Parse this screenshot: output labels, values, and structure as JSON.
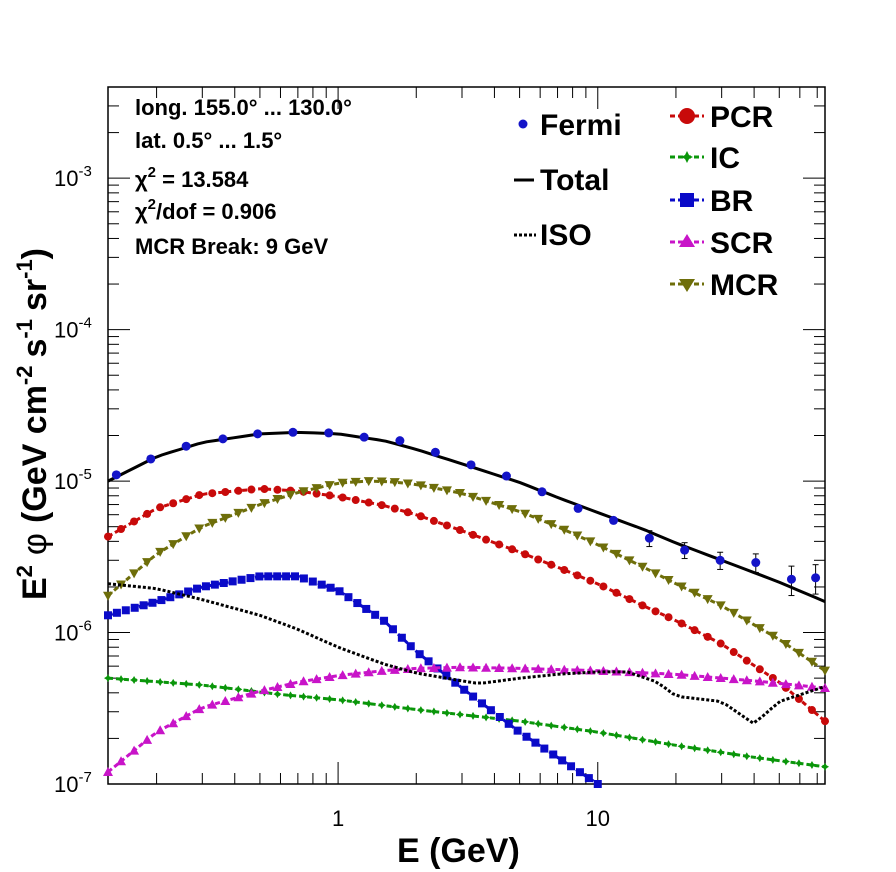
{
  "chart_data": {
    "type": "line",
    "xlabel": "E (GeV)",
    "ylabel": "E2 φ (GeV cm-2 s-1 sr-1)",
    "ylabel_parts": {
      "e": "E",
      "e_sup": "2",
      "phi": "φ",
      "open": "(GeV cm",
      "cm_sup": "-2",
      "s": "s",
      "s_sup": "-1",
      "sr": "sr",
      "sr_sup": "-1",
      "close": ")"
    },
    "xscale": "log",
    "yscale": "log",
    "xlim": [
      0.13,
      75
    ],
    "ylim": [
      1e-07,
      0.004
    ],
    "x_tick_labels": [
      {
        "value": 1,
        "label": "1"
      },
      {
        "value": 10,
        "label": "10"
      }
    ],
    "y_tick_labels": [
      {
        "value": 1e-07,
        "mant": "10",
        "exp": "-7"
      },
      {
        "value": 1e-06,
        "mant": "10",
        "exp": "-6"
      },
      {
        "value": 1e-05,
        "mant": "10",
        "exp": "-5"
      },
      {
        "value": 0.0001,
        "mant": "10",
        "exp": "-4"
      },
      {
        "value": 0.001,
        "mant": "10",
        "exp": "-3"
      }
    ],
    "info": {
      "line1": "long. 155.0° ... 130.0°",
      "line2": "lat. 0.5° ... 1.5°",
      "chi_sym": "χ",
      "chi_sup": "2",
      "chi2_text": " = 13.584",
      "chi2dof_text": "/dof = 0.906",
      "break_text": "MCR Break:  9 GeV"
    },
    "legend": [
      {
        "label": "Fermi",
        "key": "fermi"
      },
      {
        "label": "Total",
        "key": "total"
      },
      {
        "label": "ISO",
        "key": "iso"
      },
      {
        "label": "PCR",
        "key": "pcr"
      },
      {
        "label": "IC",
        "key": "ic"
      },
      {
        "label": "BR",
        "key": "br"
      },
      {
        "label": "SCR",
        "key": "scr"
      },
      {
        "label": "MCR",
        "key": "mcr"
      }
    ],
    "fermi": {
      "name": "Fermi",
      "color": "#1414c8",
      "points": [
        {
          "x": 0.14,
          "y": 1.1e-05
        },
        {
          "x": 0.19,
          "y": 1.4e-05
        },
        {
          "x": 0.26,
          "y": 1.7e-05
        },
        {
          "x": 0.36,
          "y": 1.9e-05
        },
        {
          "x": 0.49,
          "y": 2.05e-05
        },
        {
          "x": 0.67,
          "y": 2.1e-05
        },
        {
          "x": 0.92,
          "y": 2.08e-05
        },
        {
          "x": 1.26,
          "y": 1.95e-05
        },
        {
          "x": 1.73,
          "y": 1.85e-05
        },
        {
          "x": 2.37,
          "y": 1.55e-05
        },
        {
          "x": 3.25,
          "y": 1.28e-05
        },
        {
          "x": 4.45,
          "y": 1.08e-05
        },
        {
          "x": 6.1,
          "y": 8.5e-06
        },
        {
          "x": 8.4,
          "y": 6.6e-06
        },
        {
          "x": 11.5,
          "y": 5.5e-06
        },
        {
          "x": 15.8,
          "y": 4.2e-06,
          "err": 0.12
        },
        {
          "x": 21.6,
          "y": 3.5e-06,
          "err": 0.12
        },
        {
          "x": 29.6,
          "y": 3e-06,
          "err": 0.13
        },
        {
          "x": 40.6,
          "y": 2.9e-06,
          "err": 0.14
        },
        {
          "x": 55.7,
          "y": 2.25e-06,
          "err": 0.22
        },
        {
          "x": 69,
          "y": 2.3e-06,
          "err": 0.22
        }
      ]
    },
    "series": [
      {
        "name": "Total",
        "key": "total",
        "color": "#000000",
        "style": "solid",
        "marker": "none",
        "x": [
          0.13,
          0.2,
          0.3,
          0.5,
          0.7,
          1.0,
          1.5,
          2.0,
          3.0,
          5.0,
          7.0,
          10,
          15,
          20,
          30,
          50,
          75
        ],
        "y": [
          1e-05,
          1.45e-05,
          1.8e-05,
          2.05e-05,
          2.1e-05,
          2.05e-05,
          1.85e-05,
          1.62e-05,
          1.3e-05,
          9.8e-06,
          7.8e-06,
          6.2e-06,
          4.8e-06,
          3.9e-06,
          3e-06,
          2.15e-06,
          1.6e-06
        ]
      },
      {
        "name": "PCR",
        "key": "pcr",
        "color": "#c80a0a",
        "style": "dashed",
        "marker": "circle",
        "x": [
          0.13,
          0.2,
          0.3,
          0.5,
          0.7,
          1.0,
          1.5,
          2.0,
          3.0,
          5.0,
          7.0,
          10,
          15,
          20,
          30,
          50,
          75
        ],
        "y": [
          4.3e-06,
          6.6e-06,
          8.2e-06,
          8.9e-06,
          8.6e-06,
          7.9e-06,
          6.9e-06,
          6e-06,
          4.7e-06,
          3.4e-06,
          2.7e-06,
          2.1e-06,
          1.5e-06,
          1.2e-06,
          8.4e-07,
          4.7e-07,
          2.6e-07
        ]
      },
      {
        "name": "IC",
        "key": "ic",
        "color": "#0a960a",
        "style": "dashed",
        "marker": "star",
        "x": [
          0.13,
          0.3,
          0.6,
          1.0,
          2.0,
          5.0,
          10,
          20,
          40,
          75
        ],
        "y": [
          5e-07,
          4.5e-07,
          3.9e-07,
          3.6e-07,
          3.1e-07,
          2.6e-07,
          2.2e-07,
          1.8e-07,
          1.5e-07,
          1.3e-07
        ]
      },
      {
        "name": "BR",
        "key": "br",
        "color": "#0a0ac8",
        "style": "dashed",
        "marker": "square",
        "x": [
          0.13,
          0.2,
          0.3,
          0.5,
          0.7,
          1.0,
          1.5,
          2.0,
          3.0,
          5.0,
          7.0,
          10
        ],
        "y": [
          1.3e-06,
          1.6e-06,
          2e-06,
          2.35e-06,
          2.35e-06,
          1.9e-06,
          1.2e-06,
          7.5e-07,
          4.3e-07,
          2.2e-07,
          1.5e-07,
          1e-07
        ]
      },
      {
        "name": "SCR",
        "key": "scr",
        "color": "#c814c8",
        "style": "dashed",
        "marker": "triangle-up",
        "x": [
          0.13,
          0.2,
          0.3,
          0.5,
          0.7,
          1.0,
          1.5,
          2.0,
          3.0,
          5.0,
          10,
          20,
          40,
          75
        ],
        "y": [
          1.2e-07,
          2.2e-07,
          3.2e-07,
          4.1e-07,
          4.7e-07,
          5.2e-07,
          5.6e-07,
          5.8e-07,
          5.9e-07,
          5.8e-07,
          5.6e-07,
          5.3e-07,
          4.8e-07,
          4.3e-07
        ]
      },
      {
        "name": "MCR",
        "key": "mcr",
        "color": "#6e6e0a",
        "style": "dashed",
        "marker": "triangle-down",
        "x": [
          0.13,
          0.2,
          0.3,
          0.5,
          0.7,
          1.0,
          1.3,
          1.6,
          2.0,
          3.0,
          5.0,
          7.0,
          10,
          15,
          20,
          30,
          50,
          75
        ],
        "y": [
          1.75e-06,
          3.3e-06,
          5e-06,
          7e-06,
          8.4e-06,
          9.7e-06,
          1e-05,
          9.9e-06,
          9.5e-06,
          8.3e-06,
          6.3e-06,
          5e-06,
          3.8e-06,
          2.7e-06,
          2.1e-06,
          1.5e-06,
          9e-07,
          5.6e-07
        ]
      },
      {
        "name": "ISO",
        "key": "iso",
        "color": "#000000",
        "style": "dotted",
        "marker": "none",
        "x": [
          0.13,
          0.2,
          0.3,
          0.5,
          0.7,
          1.0,
          1.5,
          2.0,
          3.0,
          3.5,
          5.0,
          7.0,
          10,
          13,
          17,
          20,
          30,
          40,
          50,
          75
        ],
        "y": [
          2.1e-06,
          1.95e-06,
          1.65e-06,
          1.3e-06,
          1.05e-06,
          8e-07,
          6.2e-07,
          5.4e-07,
          4.8e-07,
          4.6e-07,
          5e-07,
          5.3e-07,
          5.5e-07,
          5.5e-07,
          4.7e-07,
          3.8e-07,
          3.5e-07,
          2.5e-07,
          3.5e-07,
          4.4e-07
        ]
      }
    ]
  }
}
